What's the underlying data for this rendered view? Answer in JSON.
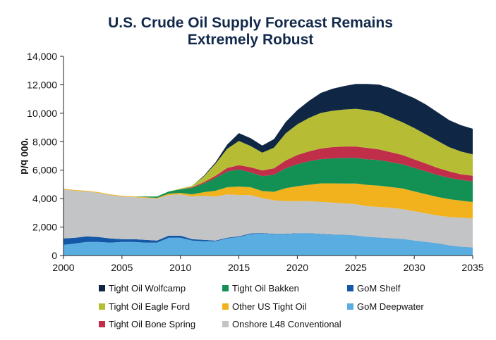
{
  "chart_data": {
    "type": "area",
    "stacked": true,
    "title": "U.S. Crude Oil Supply Forecast Remains Extremely Robust",
    "title_lines": [
      "U.S. Crude Oil Supply Forecast Remains",
      "Extremely Robust"
    ],
    "ylabel": "'000 b/d",
    "xlabel": "",
    "xlim": [
      2000,
      2035
    ],
    "ylim": [
      0,
      14000
    ],
    "xticks": [
      "2000",
      "2005",
      "2010",
      "2015",
      "2020",
      "2025",
      "2030",
      "2035"
    ],
    "yticks": [
      "0",
      "2,000",
      "4,000",
      "6,000",
      "8,000",
      "10,000",
      "12,000",
      "14,000"
    ],
    "grid": false,
    "legend_position": "bottom",
    "x": [
      2000,
      2001,
      2002,
      2003,
      2004,
      2005,
      2006,
      2007,
      2008,
      2009,
      2010,
      2011,
      2012,
      2013,
      2014,
      2015,
      2016,
      2017,
      2018,
      2019,
      2020,
      2021,
      2022,
      2023,
      2024,
      2025,
      2026,
      2027,
      2028,
      2029,
      2030,
      2031,
      2032,
      2033,
      2034,
      2035
    ],
    "series": [
      {
        "name": "GoM Deepwater",
        "color": "#5aade0",
        "values": [
          750,
          850,
          950,
          950,
          900,
          950,
          950,
          900,
          900,
          1250,
          1250,
          1050,
          1000,
          1000,
          1200,
          1300,
          1500,
          1550,
          1500,
          1500,
          1550,
          1550,
          1500,
          1450,
          1450,
          1400,
          1300,
          1250,
          1200,
          1150,
          1050,
          950,
          850,
          700,
          600,
          550
        ]
      },
      {
        "name": "GoM Shelf",
        "color": "#1357a6",
        "values": [
          450,
          400,
          400,
          350,
          300,
          200,
          200,
          200,
          150,
          150,
          150,
          100,
          100,
          50,
          50,
          50,
          50,
          30,
          30,
          30,
          20,
          20,
          20,
          20,
          10,
          10,
          10,
          10,
          10,
          10,
          10,
          10,
          10,
          10,
          10,
          10
        ]
      },
      {
        "name": "Onshore L48 Conventional",
        "color": "#c2c4c6",
        "values": [
          3450,
          3300,
          3150,
          3100,
          3050,
          3000,
          2950,
          2950,
          2950,
          2850,
          2900,
          3000,
          3100,
          3100,
          3050,
          2900,
          2700,
          2450,
          2350,
          2300,
          2250,
          2250,
          2250,
          2250,
          2200,
          2200,
          2150,
          2150,
          2150,
          2100,
          2050,
          2000,
          1950,
          2000,
          2050,
          2050
        ]
      },
      {
        "name": "Other US Tight Oil",
        "color": "#f1b21e",
        "values": [
          50,
          50,
          50,
          50,
          50,
          50,
          50,
          50,
          50,
          100,
          100,
          150,
          250,
          400,
          500,
          600,
          550,
          500,
          600,
          900,
          1050,
          1150,
          1300,
          1350,
          1400,
          1450,
          1500,
          1500,
          1450,
          1450,
          1400,
          1350,
          1300,
          1250,
          1200,
          1150
        ]
      },
      {
        "name": "Tight Oil Bakken",
        "color": "#139155",
        "values": [
          0,
          0,
          0,
          0,
          0,
          0,
          0,
          50,
          100,
          150,
          250,
          450,
          600,
          900,
          1100,
          1200,
          1050,
          1050,
          1200,
          1400,
          1550,
          1650,
          1700,
          1750,
          1800,
          1800,
          1800,
          1800,
          1750,
          1700,
          1650,
          1600,
          1550,
          1500,
          1450,
          1450
        ]
      },
      {
        "name": "Tight Oil Bone Spring",
        "color": "#c02e4a",
        "values": [
          0,
          0,
          0,
          0,
          0,
          0,
          0,
          0,
          0,
          0,
          0,
          50,
          100,
          150,
          250,
          300,
          350,
          400,
          450,
          550,
          650,
          700,
          750,
          800,
          800,
          800,
          800,
          750,
          700,
          650,
          600,
          550,
          500,
          450,
          400,
          400
        ]
      },
      {
        "name": "Tight Oil Eagle Ford",
        "color": "#b6bd35",
        "values": [
          0,
          0,
          0,
          0,
          0,
          0,
          0,
          0,
          0,
          0,
          50,
          100,
          400,
          850,
          1350,
          1700,
          1500,
          1250,
          1450,
          1900,
          2150,
          2350,
          2500,
          2550,
          2600,
          2650,
          2650,
          2600,
          2450,
          2300,
          2200,
          2050,
          1900,
          1700,
          1600,
          1500
        ]
      },
      {
        "name": "Tight Oil Wolfcamp",
        "color": "#0f2744",
        "values": [
          0,
          0,
          0,
          0,
          0,
          0,
          0,
          0,
          0,
          0,
          0,
          0,
          50,
          100,
          300,
          550,
          550,
          500,
          600,
          800,
          1000,
          1200,
          1400,
          1550,
          1650,
          1750,
          1850,
          1950,
          2050,
          2050,
          2100,
          2100,
          2000,
          1900,
          1850,
          1800
        ]
      }
    ],
    "legend": [
      {
        "name": "Tight Oil Wolfcamp",
        "color": "#0f2744"
      },
      {
        "name": "Tight Oil Bakken",
        "color": "#139155"
      },
      {
        "name": "GoM Shelf",
        "color": "#1357a6"
      },
      {
        "name": "Tight Oil Eagle Ford",
        "color": "#b6bd35"
      },
      {
        "name": "Other US Tight Oil",
        "color": "#f1b21e"
      },
      {
        "name": "GoM Deepwater",
        "color": "#5aade0"
      },
      {
        "name": "Tight Oil Bone Spring",
        "color": "#c02e4a"
      },
      {
        "name": "Onshore L48 Conventional",
        "color": "#c2c4c6"
      }
    ]
  }
}
